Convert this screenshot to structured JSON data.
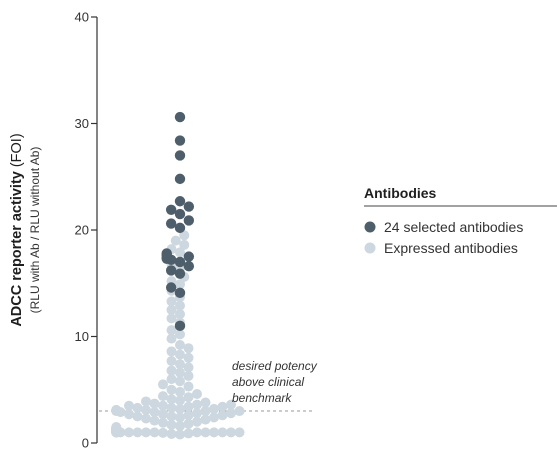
{
  "chart_data": {
    "type": "scatter",
    "subtype": "strip-beeswarm",
    "ylabel": {
      "main": "ADCC reporter activity",
      "unit": "(FOI)",
      "sub": "(RLU with Ab / RLU without Ab)"
    },
    "ylim": [
      0,
      40
    ],
    "yticks": [
      "0",
      "10",
      "20",
      "30",
      "40"
    ],
    "ytick_values": [
      0,
      10,
      20,
      30,
      40
    ],
    "grid": false,
    "threshold": {
      "y": 3,
      "label_lines": [
        "desired potency",
        "above clinical",
        "benchmark"
      ]
    },
    "legend": {
      "title": "Antibodies",
      "placement": "right",
      "entries": [
        {
          "label": "24 selected antibodies",
          "color": "#4e5f6b"
        },
        {
          "label": "Expressed antibodies",
          "color": "#cdd7df"
        }
      ]
    },
    "series": [
      {
        "name": "24 selected antibodies",
        "color": "#4e5f6b",
        "values": [
          30.6,
          28.4,
          27.0,
          24.8,
          22.7,
          22.2,
          21.9,
          21.5,
          20.9,
          20.6,
          20.2,
          17.6,
          17.5,
          17.4,
          17.3,
          17.2,
          17.0,
          16.6,
          16.2,
          15.9,
          14.6,
          14.1,
          11.0,
          17.8
        ]
      },
      {
        "name": "Expressed antibodies",
        "color": "#cdd7df",
        "values": [
          19.5,
          19.0,
          18.6,
          18.2,
          17.9,
          16.8,
          16.4,
          15.6,
          15.2,
          14.9,
          14.3,
          13.7,
          13.3,
          12.9,
          12.5,
          12.1,
          11.7,
          11.3,
          10.6,
          10.2,
          9.8,
          9.2,
          8.9,
          8.6,
          8.3,
          8.0,
          7.7,
          7.4,
          7.1,
          6.8,
          6.6,
          6.3,
          6.0,
          5.8,
          5.5,
          5.3,
          5.0,
          4.8,
          4.6,
          4.4,
          4.3,
          4.1,
          4.0,
          3.9,
          3.8,
          3.7,
          3.6,
          3.5,
          3.4,
          3.3,
          3.2,
          3.1,
          3.0,
          2.9,
          2.8,
          2.7,
          2.6,
          2.5,
          2.4,
          2.3,
          2.2,
          2.1,
          2.0,
          1.9,
          1.8,
          1.7,
          1.6,
          1.5,
          1.45,
          1.4,
          1.35,
          1.3,
          1.25,
          1.2,
          1.15,
          1.1,
          1.05,
          1.0,
          0.95,
          0.9,
          0.85,
          0.8,
          3.1,
          3.0,
          2.9,
          3.2,
          3.3,
          2.8,
          3.4,
          2.7,
          3.0,
          3.1,
          2.6,
          3.5,
          2.5,
          3.6,
          2.4,
          1.3,
          1.2,
          1.1,
          1.0,
          1.2,
          1.3,
          1.1,
          1.0,
          1.2,
          1.4,
          1.1,
          1.0,
          1.3,
          1.2,
          1.1,
          1.0,
          1.2,
          1.3,
          1.1,
          1.0,
          1.2,
          1.4,
          1.1,
          1.0,
          1.3,
          1.2,
          1.1,
          1.0,
          1.2,
          1.3,
          1.1,
          1.0,
          1.2,
          1.4,
          1.1,
          1.0,
          1.3,
          1.2,
          1.1,
          1.0,
          1.2,
          1.3,
          1.1,
          1.0,
          1.2,
          1.4,
          1.1,
          1.0,
          1.3,
          1.2,
          1.1,
          1.0,
          1.2,
          1.3,
          1.1,
          1.0,
          1.2,
          1.4,
          1.1,
          1.0,
          1.3,
          1.2,
          1.1,
          1.0,
          1.2,
          1.3,
          1.1,
          1.0,
          1.2,
          1.4,
          1.1,
          1.0
        ]
      }
    ]
  }
}
